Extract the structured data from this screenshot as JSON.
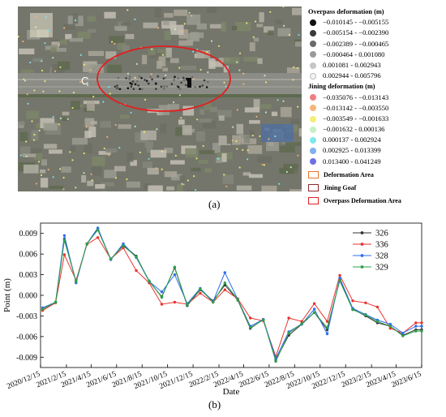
{
  "panel_a_label": "(a)",
  "panel_b_label": "(b)",
  "map": {
    "area_label": "C"
  },
  "legend": {
    "overpass_title": "Overpass deformation (m)",
    "overpass_classes": [
      {
        "label": "−0.010145 - −0.005155",
        "color": "#111111"
      },
      {
        "label": "−0.005154 - −0.002390",
        "color": "#3a3a3a"
      },
      {
        "label": "−0.002389 - −0.000465",
        "color": "#6a6a6a"
      },
      {
        "label": "−0.000464 - 0.001080",
        "color": "#9a9a9a"
      },
      {
        "label": "0.001081 - 0.002943",
        "color": "#c6c6c6"
      },
      {
        "label": "0.002944 - 0.005796",
        "color": "#f4f4f4"
      }
    ],
    "jining_title": "Jining deformation (m)",
    "jining_classes": [
      {
        "label": "−0.035076 - −0.013143",
        "color": "#f08080"
      },
      {
        "label": "−0.013142 - −0.003550",
        "color": "#f5b57a"
      },
      {
        "label": "−0.003549 - −0.001633",
        "color": "#f4ee74"
      },
      {
        "label": "−0.001632 - 0.000136",
        "color": "#c5f0c5"
      },
      {
        "label": "0.000137 - 0.002924",
        "color": "#7ee8ee"
      },
      {
        "label": "0.002925 - 0.013399",
        "color": "#7fb0ef"
      },
      {
        "label": "0.013400 - 0.041249",
        "color": "#6f6fe8"
      }
    ],
    "areas": [
      {
        "label": "Deformation Area",
        "color": "#e8732a"
      },
      {
        "label": "Jining Goaf",
        "color": "#8b2a2a"
      },
      {
        "label": "Overpass Deformation Area",
        "color": "#e02020"
      }
    ]
  },
  "chart_data": {
    "type": "line",
    "xlabel": "Date",
    "ylabel": "Point (m)",
    "ylim": [
      -0.0105,
      0.0105
    ],
    "yticks": [
      -0.009,
      -0.006,
      -0.003,
      0.0,
      0.003,
      0.006,
      0.009
    ],
    "yticklabels": [
      "-0.009",
      "-0.006",
      "-0.003",
      "0.000",
      "0.003",
      "0.006",
      "0.009"
    ],
    "xlim": [
      "2020/12/15",
      "2023/6/15"
    ],
    "xticklabels": [
      "2020/12/15",
      "2021/2/15",
      "2021/4/15",
      "2021/6/15",
      "2021/8/15",
      "2021/10/15",
      "2021/12/15",
      "2022/2/15",
      "2022/4/15",
      "2022/6/15",
      "2022/8/15",
      "2022/10/15",
      "2022/12/15",
      "2023/2/15",
      "2023/4/15",
      "2023/6/15"
    ],
    "x": [
      "2020/12/20",
      "2021/1/20",
      "2021/2/10",
      "2021/3/10",
      "2021/4/5",
      "2021/5/1",
      "2021/6/1",
      "2021/7/1",
      "2021/8/1",
      "2021/9/1",
      "2021/10/1",
      "2021/11/1",
      "2021/12/1",
      "2022/1/1",
      "2022/2/1",
      "2022/3/1",
      "2022/4/1",
      "2022/5/1",
      "2022/6/1",
      "2022/7/1",
      "2022/8/1",
      "2022/9/1",
      "2022/10/1",
      "2022/11/1",
      "2022/12/1",
      "2023/1/1",
      "2023/2/1",
      "2023/3/1",
      "2023/4/1",
      "2023/5/1",
      "2023/6/1",
      "2023/6/15"
    ],
    "series": [
      {
        "name": "326",
        "color": "#333333",
        "values": [
          -0.002,
          -0.001,
          0.0082,
          0.002,
          0.0075,
          0.0096,
          0.0052,
          0.0073,
          0.0057,
          0.002,
          -0.0002,
          0.004,
          -0.0015,
          0.0008,
          -0.0008,
          0.0015,
          -0.0007,
          -0.0048,
          -0.0035,
          -0.0094,
          -0.0058,
          -0.0042,
          -0.0025,
          -0.005,
          0.0023,
          -0.002,
          -0.003,
          -0.004,
          -0.0045,
          -0.0058,
          -0.005,
          -0.005
        ]
      },
      {
        "name": "336",
        "color": "#e8342f",
        "values": [
          -0.0022,
          -0.0011,
          0.0059,
          0.0022,
          0.0074,
          0.0084,
          0.0053,
          0.0069,
          0.0036,
          0.0018,
          -0.0013,
          -0.001,
          -0.0013,
          0.0003,
          -0.001,
          0.0008,
          -0.0005,
          -0.0033,
          -0.0037,
          -0.0089,
          -0.0033,
          -0.0038,
          -0.0012,
          -0.0038,
          0.0029,
          -0.0008,
          -0.0011,
          -0.0017,
          -0.0048,
          -0.0055,
          -0.004,
          -0.004
        ]
      },
      {
        "name": "328",
        "color": "#2f6ff0",
        "values": [
          -0.0018,
          -0.001,
          0.0087,
          0.0018,
          0.0075,
          0.0098,
          0.0052,
          0.0075,
          0.0055,
          0.002,
          0.0005,
          0.003,
          -0.0012,
          0.001,
          -0.0009,
          0.0033,
          -0.0006,
          -0.0045,
          -0.0035,
          -0.0092,
          -0.0053,
          -0.0042,
          -0.002,
          -0.0056,
          0.0025,
          -0.0019,
          -0.0028,
          -0.0036,
          -0.0042,
          -0.0055,
          -0.0045,
          -0.0045
        ]
      },
      {
        "name": "329",
        "color": "#2ea04a",
        "values": [
          -0.002,
          -0.001,
          0.008,
          0.002,
          0.0075,
          0.0095,
          0.0053,
          0.0072,
          0.0056,
          0.0021,
          -0.0003,
          0.0041,
          -0.0014,
          0.0009,
          -0.001,
          0.0018,
          -0.0006,
          -0.0047,
          -0.0036,
          -0.0096,
          -0.0055,
          -0.0041,
          -0.0025,
          -0.0047,
          0.0021,
          -0.0021,
          -0.0029,
          -0.0038,
          -0.0045,
          -0.0059,
          -0.0052,
          -0.0052
        ]
      }
    ]
  }
}
